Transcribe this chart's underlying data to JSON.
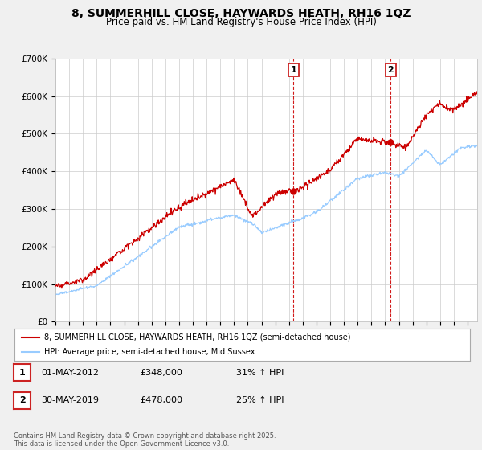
{
  "title": "8, SUMMERHILL CLOSE, HAYWARDS HEATH, RH16 1QZ",
  "subtitle": "Price paid vs. HM Land Registry's House Price Index (HPI)",
  "title_fontsize": 10,
  "subtitle_fontsize": 8.5,
  "bg_color": "#f0f0f0",
  "plot_bg_color": "#ffffff",
  "grid_color": "#cccccc",
  "ylim": [
    0,
    700000
  ],
  "yticks": [
    0,
    100000,
    200000,
    300000,
    400000,
    500000,
    600000,
    700000
  ],
  "ytick_labels": [
    "£0",
    "£100K",
    "£200K",
    "£300K",
    "£400K",
    "£500K",
    "£600K",
    "£700K"
  ],
  "red_color": "#cc0000",
  "blue_color": "#99ccff",
  "marker1_date": 2012.33,
  "marker2_date": 2019.41,
  "marker1_value": 348000,
  "marker2_value": 478000,
  "legend_line1": "8, SUMMERHILL CLOSE, HAYWARDS HEATH, RH16 1QZ (semi-detached house)",
  "legend_line2": "HPI: Average price, semi-detached house, Mid Sussex",
  "footer_text": "Contains HM Land Registry data © Crown copyright and database right 2025.\nThis data is licensed under the Open Government Licence v3.0.",
  "table_row1": [
    "1",
    "01-MAY-2012",
    "£348,000",
    "31% ↑ HPI"
  ],
  "table_row2": [
    "2",
    "30-MAY-2019",
    "£478,000",
    "25% ↑ HPI"
  ],
  "xlim_left": 1995,
  "xlim_right": 2025.7
}
